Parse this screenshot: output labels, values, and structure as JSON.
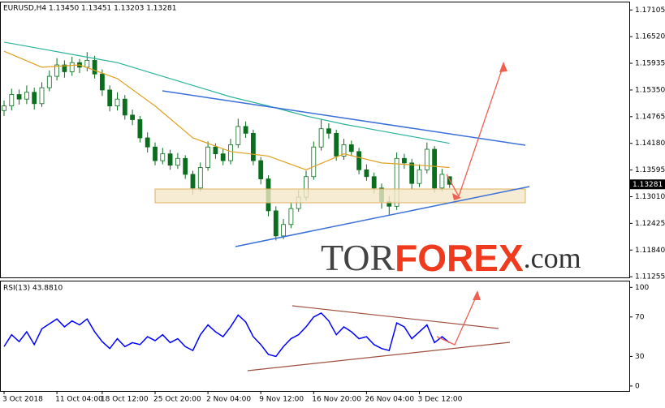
{
  "chart_data": [
    {
      "type": "candlestick",
      "header": "EURUSD,H4 1.13450 1.13451 1.13203 1.13281",
      "watermark": [
        "TOR",
        "FOREX",
        ".com"
      ],
      "categories": [
        "3 Oct 2018",
        null,
        null,
        null,
        null,
        null,
        null,
        "11 Oct 04:00",
        null,
        null,
        null,
        null,
        null,
        "18 Oct 12:00",
        null,
        null,
        null,
        null,
        null,
        null,
        "25 Oct 20:00",
        null,
        null,
        null,
        null,
        null,
        null,
        "2 Nov 04:00",
        null,
        null,
        null,
        null,
        null,
        null,
        "9 Nov 12:00",
        null,
        null,
        null,
        null,
        null,
        null,
        "16 Nov 20:00",
        null,
        null,
        null,
        null,
        null,
        null,
        "26 Nov 04:00",
        null,
        null,
        null,
        null,
        null,
        null,
        "3 Dec 12:00",
        null,
        null,
        null,
        null
      ],
      "open": [
        1.149,
        1.15,
        1.1525,
        1.1515,
        1.153,
        1.1505,
        1.154,
        1.1565,
        1.159,
        1.1575,
        1.1595,
        1.1585,
        1.16,
        1.157,
        1.1535,
        1.15,
        1.1515,
        1.148,
        1.147,
        1.143,
        1.141,
        1.138,
        1.1395,
        1.137,
        1.1385,
        1.135,
        1.132,
        1.1365,
        1.141,
        1.1395,
        1.138,
        1.1415,
        1.1455,
        1.144,
        1.138,
        1.134,
        1.127,
        1.1215,
        1.124,
        1.1275,
        1.13,
        1.1345,
        1.141,
        1.145,
        1.144,
        1.139,
        1.1415,
        1.14,
        1.136,
        1.1345,
        1.132,
        1.129,
        1.128,
        1.1385,
        1.1375,
        1.133,
        1.136,
        1.1405,
        1.132,
        1.1345
      ],
      "high": [
        1.1512,
        1.1538,
        1.1536,
        1.1545,
        1.154,
        1.1552,
        1.1578,
        1.1605,
        1.16,
        1.1608,
        1.1603,
        1.1618,
        1.161,
        1.158,
        1.1545,
        1.153,
        1.1524,
        1.1492,
        1.1478,
        1.1442,
        1.142,
        1.1408,
        1.1404,
        1.1397,
        1.1392,
        1.1358,
        1.1376,
        1.1422,
        1.1418,
        1.1405,
        1.1428,
        1.1472,
        1.1466,
        1.1448,
        1.1388,
        1.1348,
        1.128,
        1.1252,
        1.1288,
        1.1315,
        1.1358,
        1.1422,
        1.147,
        1.1462,
        1.1448,
        1.1428,
        1.1424,
        1.1408,
        1.1372,
        1.1354,
        1.133,
        1.1302,
        1.1398,
        1.1395,
        1.1384,
        1.1372,
        1.142,
        1.1412,
        1.1362,
        1.13451
      ],
      "low": [
        1.1478,
        1.149,
        1.1503,
        1.1504,
        1.1492,
        1.1498,
        1.1532,
        1.1556,
        1.1562,
        1.1566,
        1.1572,
        1.1576,
        1.156,
        1.1522,
        1.1488,
        1.149,
        1.147,
        1.1458,
        1.142,
        1.1398,
        1.137,
        1.1372,
        1.136,
        1.1362,
        1.134,
        1.1305,
        1.1312,
        1.1358,
        1.1384,
        1.137,
        1.1372,
        1.1408,
        1.143,
        1.137,
        1.1328,
        1.1258,
        1.1205,
        1.1208,
        1.1232,
        1.1268,
        1.1292,
        1.1338,
        1.1402,
        1.1428,
        1.138,
        1.1382,
        1.139,
        1.135,
        1.1336,
        1.1308,
        1.1275,
        1.1262,
        1.1272,
        1.1362,
        1.1318,
        1.1322,
        1.1352,
        1.131,
        1.1312,
        1.13203
      ],
      "close": [
        1.15,
        1.1525,
        1.1515,
        1.153,
        1.1505,
        1.154,
        1.1565,
        1.159,
        1.1575,
        1.1595,
        1.1585,
        1.16,
        1.157,
        1.1535,
        1.15,
        1.1515,
        1.148,
        1.147,
        1.143,
        1.141,
        1.138,
        1.1395,
        1.137,
        1.1385,
        1.135,
        1.132,
        1.1365,
        1.141,
        1.1395,
        1.138,
        1.1415,
        1.1455,
        1.144,
        1.138,
        1.134,
        1.127,
        1.1215,
        1.124,
        1.1275,
        1.13,
        1.1345,
        1.141,
        1.145,
        1.144,
        1.139,
        1.1415,
        1.14,
        1.136,
        1.1345,
        1.132,
        1.129,
        1.128,
        1.1385,
        1.1375,
        1.133,
        1.136,
        1.1405,
        1.132,
        1.135,
        1.13281
      ],
      "color": "#0a6e1e",
      "series": [
        {
          "color": "#2bb39b",
          "x": [
            0,
            5,
            10,
            15,
            20,
            25,
            30,
            35,
            40,
            45,
            50,
            55,
            59
          ],
          "values": [
            1.164,
            1.1625,
            1.161,
            1.1595,
            1.157,
            1.1545,
            1.152,
            1.15,
            1.1478,
            1.146,
            1.1445,
            1.143,
            1.1418
          ]
        },
        {
          "color": "#e0a020",
          "x": [
            0,
            5,
            10,
            15,
            20,
            25,
            30,
            35,
            40,
            45,
            50,
            55,
            59
          ],
          "values": [
            1.162,
            1.1585,
            1.159,
            1.156,
            1.15,
            1.143,
            1.14,
            1.139,
            1.136,
            1.1395,
            1.1375,
            1.137,
            1.1365
          ]
        }
      ],
      "ylim": [
        1.1124,
        1.1727
      ],
      "yticks": [
        1.17105,
        {
          "value": 1.1652,
          "label": "1.16520"
        },
        1.15935,
        {
          "value": 1.1535,
          "label": "1.15350"
        },
        1.14765,
        {
          "value": 1.1418,
          "label": "1.14180"
        },
        1.13595,
        {
          "value": 1.1301,
          "label": "1.13010"
        },
        1.12425,
        {
          "value": 1.1184,
          "label": "1.11840"
        },
        1.11255
      ]
    },
    {
      "type": "line",
      "title": "RSI(13) 43.8810",
      "color": "#0000ff",
      "values": [
        40,
        52,
        45,
        55,
        42,
        58,
        63,
        68,
        60,
        66,
        62,
        68,
        55,
        45,
        38,
        48,
        40,
        44,
        42,
        50,
        46,
        52,
        44,
        48,
        40,
        36,
        52,
        62,
        55,
        50,
        60,
        72,
        65,
        50,
        42,
        32,
        30,
        40,
        48,
        52,
        60,
        70,
        74,
        66,
        52,
        60,
        55,
        48,
        50,
        42,
        38,
        36,
        64,
        60,
        48,
        55,
        62,
        44,
        50,
        43.881
      ],
      "ylim": [
        -5,
        106
      ],
      "yticks": [
        100,
        70,
        30,
        0
      ]
    }
  ]
}
